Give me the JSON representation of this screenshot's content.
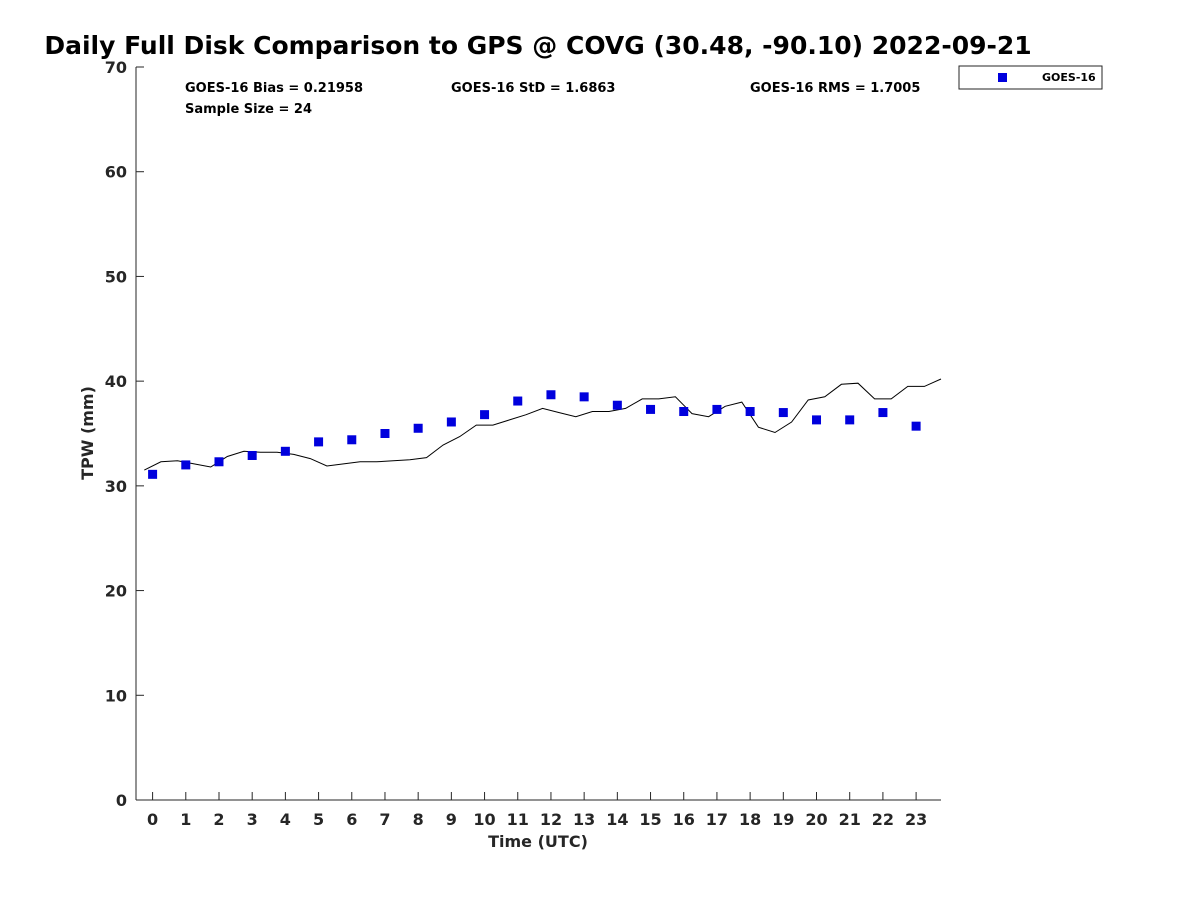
{
  "chart_data": {
    "type": "scatter",
    "title": "Daily Full Disk Comparison to GPS @ COVG (30.48, -90.10) 2022-09-21",
    "xlabel": "Time (UTC)",
    "ylabel": "TPW (mm)",
    "ylim": [
      0,
      70
    ],
    "xlim": [
      -0.5,
      23.75
    ],
    "yticks": [
      0,
      10,
      20,
      30,
      40,
      50,
      60,
      70
    ],
    "xticks": [
      0,
      1,
      2,
      3,
      4,
      5,
      6,
      7,
      8,
      9,
      10,
      11,
      12,
      13,
      14,
      15,
      16,
      17,
      18,
      19,
      20,
      21,
      22,
      23
    ],
    "grid": false,
    "legend_position": "top-right, outside",
    "stats": {
      "bias": "GOES-16 Bias = 0.21958",
      "std": "GOES-16 StD = 1.6863",
      "rms": "GOES-16 RMS = 1.7005",
      "sample_size": "Sample Size = 24"
    },
    "series": [
      {
        "name": "GOES-16",
        "kind": "scatter",
        "marker": "square",
        "color": "#0000dd",
        "x": [
          0,
          1,
          2,
          3,
          4,
          5,
          6,
          7,
          8,
          9,
          10,
          11,
          12,
          13,
          14,
          15,
          16,
          17,
          18,
          19,
          20,
          21,
          22,
          23
        ],
        "values": [
          31.1,
          32.0,
          32.3,
          32.9,
          33.3,
          34.2,
          34.4,
          35.0,
          35.5,
          36.1,
          36.8,
          38.1,
          38.7,
          38.5,
          37.7,
          37.3,
          37.1,
          37.3,
          37.1,
          37.0,
          36.3,
          36.3,
          37.0,
          35.7
        ]
      },
      {
        "kind": "line",
        "color": "#000000",
        "x": [
          -0.25,
          0.25,
          0.75,
          1.25,
          1.75,
          2.0,
          2.25,
          2.75,
          3.25,
          3.75,
          4.25,
          4.75,
          5.25,
          5.75,
          6.25,
          6.75,
          7.25,
          7.75,
          8.25,
          8.75,
          9.25,
          9.75,
          10.25,
          10.75,
          11.25,
          11.75,
          12.25,
          12.75,
          13.25,
          13.75,
          14.25,
          14.75,
          15.25,
          15.75,
          16.0,
          16.25,
          16.75,
          17.25,
          17.75,
          18.25,
          18.75,
          19.25,
          19.75,
          20.25,
          20.75,
          21.25,
          21.75,
          22.25,
          22.75,
          23.25,
          23.75
        ],
        "values": [
          31.5,
          32.3,
          32.4,
          32.1,
          31.8,
          32.3,
          32.8,
          33.3,
          33.2,
          33.2,
          33.0,
          32.6,
          31.9,
          32.1,
          32.3,
          32.3,
          32.4,
          32.5,
          32.7,
          33.9,
          34.7,
          35.8,
          35.8,
          36.3,
          36.8,
          37.4,
          37.0,
          36.6,
          37.1,
          37.1,
          37.4,
          38.3,
          38.3,
          38.5,
          37.7,
          36.9,
          36.6,
          37.6,
          38.0,
          35.6,
          35.1,
          36.1,
          38.2,
          38.5,
          39.7,
          39.8,
          38.3,
          38.3,
          39.5,
          39.5,
          40.2
        ]
      }
    ]
  }
}
